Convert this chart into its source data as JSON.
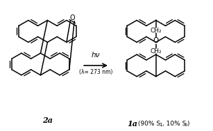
{
  "bg_color": "#ffffff",
  "line_color": "#000000",
  "lw": 1.1,
  "hv_text": "hν",
  "lambda_text": "(λ= 273 nm)",
  "label_2a": "2a",
  "label_1a": "1a"
}
